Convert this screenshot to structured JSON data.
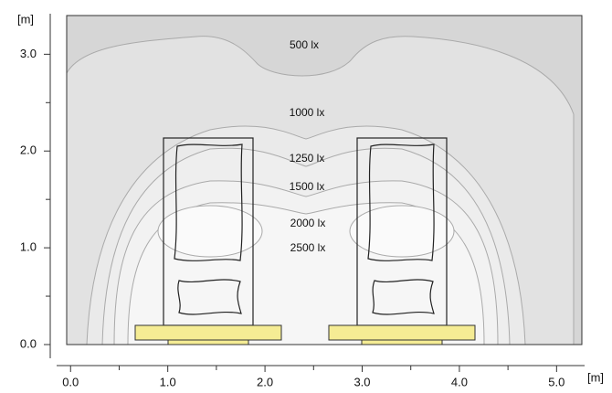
{
  "chart_data": {
    "type": "contour",
    "x_unit": "[m]",
    "y_unit": "[m]",
    "xlim": [
      -0.04,
      5.26
    ],
    "ylim": [
      0,
      3.4
    ],
    "xticks": [
      {
        "value": 0,
        "label": "0.0"
      },
      {
        "value": 1,
        "label": "1.0"
      },
      {
        "value": 2,
        "label": "2.0"
      },
      {
        "value": 3,
        "label": "3.0"
      },
      {
        "value": 4,
        "label": "4.0"
      },
      {
        "value": 5,
        "label": "5.0"
      }
    ],
    "xminor_ticks": [
      0.5,
      1.5,
      2.5,
      3.5,
      4.5
    ],
    "yticks": [
      {
        "value": 0,
        "label": "0.0"
      },
      {
        "value": 1,
        "label": "1.0"
      },
      {
        "value": 2,
        "label": "2.0"
      },
      {
        "value": 3,
        "label": "3.0"
      }
    ],
    "yminor_ticks": [
      0.5,
      1.5,
      2.5
    ],
    "contour_labels": [
      "500 lx",
      "1000 lx",
      "1250 lx",
      "1500 lx",
      "2000 lx",
      "2500 lx"
    ]
  }
}
